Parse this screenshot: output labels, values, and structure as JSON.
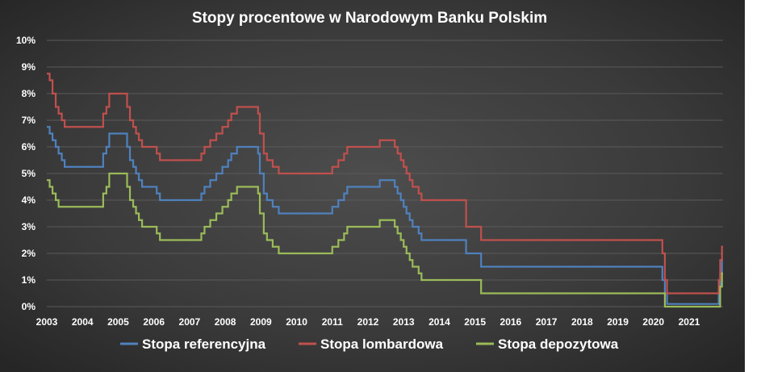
{
  "chart_data": {
    "type": "line",
    "title": "Stopy procentowe w Narodowym Banku Polskim",
    "xlabel": "",
    "ylabel": "",
    "xlim": [
      2003.0,
      2021.95
    ],
    "ylim": [
      0,
      10
    ],
    "y_ticks": [
      0,
      1,
      2,
      3,
      4,
      5,
      6,
      7,
      8,
      9,
      10
    ],
    "y_tick_labels": [
      "0%",
      "1%",
      "2%",
      "3%",
      "4%",
      "5%",
      "6%",
      "7%",
      "8%",
      "9%",
      "10%"
    ],
    "x_ticks": [
      2003,
      2004,
      2005,
      2006,
      2007,
      2008,
      2009,
      2010,
      2011,
      2012,
      2013,
      2014,
      2015,
      2016,
      2017,
      2018,
      2019,
      2020,
      2021
    ],
    "x_tick_labels": [
      "2003",
      "2004",
      "2005",
      "2006",
      "2007",
      "2008",
      "2009",
      "2010",
      "2011",
      "2012",
      "2013",
      "2014",
      "2015",
      "2016",
      "2017",
      "2018",
      "2019",
      "2020",
      "2021"
    ],
    "grid": true,
    "legend_position": "bottom",
    "background": "#333333",
    "series": [
      {
        "name": "Stopa referencyjna",
        "color": "#4f81bd",
        "step": true,
        "x": [
          2003.0,
          2003.08,
          2003.16,
          2003.25,
          2003.33,
          2003.42,
          2003.5,
          2004.58,
          2004.67,
          2004.75,
          2005.25,
          2005.33,
          2005.42,
          2005.5,
          2005.58,
          2005.67,
          2006.08,
          2006.17,
          2007.33,
          2007.42,
          2007.58,
          2007.75,
          2007.92,
          2008.08,
          2008.17,
          2008.33,
          2008.5,
          2008.92,
          2008.97,
          2009.08,
          2009.17,
          2009.33,
          2009.5,
          2011.0,
          2011.17,
          2011.33,
          2011.42,
          2012.33,
          2012.75,
          2012.83,
          2012.92,
          2013.0,
          2013.08,
          2013.17,
          2013.25,
          2013.42,
          2013.5,
          2014.75,
          2015.17,
          2020.25,
          2020.32,
          2020.38,
          2021.83,
          2021.87,
          2021.92
        ],
        "y": [
          6.75,
          6.5,
          6.25,
          6.0,
          5.75,
          5.5,
          5.25,
          5.75,
          6.0,
          6.5,
          6.0,
          5.5,
          5.25,
          5.0,
          4.75,
          4.5,
          4.25,
          4.0,
          4.25,
          4.5,
          4.75,
          5.0,
          5.25,
          5.5,
          5.75,
          6.0,
          6.0,
          5.75,
          5.0,
          4.25,
          4.0,
          3.75,
          3.5,
          3.75,
          4.0,
          4.25,
          4.5,
          4.75,
          4.5,
          4.25,
          4.0,
          3.75,
          3.5,
          3.25,
          3.0,
          2.75,
          2.5,
          2.0,
          1.5,
          1.0,
          0.5,
          0.1,
          0.5,
          1.25,
          1.75
        ]
      },
      {
        "name": "Stopa lombardowa",
        "color": "#c0504d",
        "step": true,
        "x": [
          2003.0,
          2003.08,
          2003.16,
          2003.25,
          2003.33,
          2003.42,
          2003.5,
          2004.58,
          2004.67,
          2004.75,
          2005.25,
          2005.33,
          2005.42,
          2005.5,
          2005.58,
          2005.67,
          2006.08,
          2006.17,
          2007.33,
          2007.42,
          2007.58,
          2007.75,
          2007.92,
          2008.08,
          2008.17,
          2008.33,
          2008.5,
          2008.92,
          2008.97,
          2009.08,
          2009.17,
          2009.33,
          2009.5,
          2011.0,
          2011.17,
          2011.33,
          2011.42,
          2012.33,
          2012.75,
          2012.83,
          2012.92,
          2013.0,
          2013.08,
          2013.17,
          2013.25,
          2013.42,
          2013.5,
          2014.75,
          2015.17,
          2020.25,
          2020.32,
          2020.38,
          2021.83,
          2021.87,
          2021.92
        ],
        "y": [
          8.75,
          8.5,
          8.0,
          7.5,
          7.25,
          7.0,
          6.75,
          7.25,
          7.5,
          8.0,
          7.5,
          7.0,
          6.75,
          6.5,
          6.25,
          6.0,
          5.75,
          5.5,
          5.75,
          6.0,
          6.25,
          6.5,
          6.75,
          7.0,
          7.25,
          7.5,
          7.5,
          7.25,
          6.5,
          5.75,
          5.5,
          5.25,
          5.0,
          5.25,
          5.5,
          5.75,
          6.0,
          6.25,
          6.0,
          5.75,
          5.5,
          5.25,
          5.0,
          4.75,
          4.5,
          4.25,
          4.0,
          3.0,
          2.5,
          2.0,
          1.0,
          0.5,
          1.0,
          1.75,
          2.25
        ]
      },
      {
        "name": "Stopa depozytowa",
        "color": "#9bbb59",
        "step": true,
        "x": [
          2003.0,
          2003.08,
          2003.16,
          2003.25,
          2003.33,
          2003.42,
          2003.5,
          2004.58,
          2004.67,
          2004.75,
          2005.25,
          2005.33,
          2005.42,
          2005.5,
          2005.58,
          2005.67,
          2006.08,
          2006.17,
          2007.33,
          2007.42,
          2007.58,
          2007.75,
          2007.92,
          2008.08,
          2008.17,
          2008.33,
          2008.5,
          2008.92,
          2008.97,
          2009.08,
          2009.17,
          2009.33,
          2009.5,
          2011.0,
          2011.17,
          2011.33,
          2011.42,
          2012.33,
          2012.75,
          2012.83,
          2012.92,
          2013.0,
          2013.08,
          2013.17,
          2013.25,
          2013.42,
          2013.5,
          2014.75,
          2015.17,
          2020.25,
          2020.32,
          2020.38,
          2021.83,
          2021.87,
          2021.92
        ],
        "y": [
          4.75,
          4.5,
          4.25,
          4.0,
          3.75,
          3.75,
          3.75,
          4.25,
          4.5,
          5.0,
          4.5,
          4.0,
          3.75,
          3.5,
          3.25,
          3.0,
          2.75,
          2.5,
          2.75,
          3.0,
          3.25,
          3.5,
          3.75,
          4.0,
          4.25,
          4.5,
          4.5,
          4.25,
          3.5,
          2.75,
          2.5,
          2.25,
          2.0,
          2.25,
          2.5,
          2.75,
          3.0,
          3.25,
          3.0,
          2.75,
          2.5,
          2.25,
          2.0,
          1.75,
          1.5,
          1.25,
          1.0,
          1.0,
          0.5,
          0.5,
          0.0,
          0.0,
          0.0,
          0.75,
          1.25
        ]
      }
    ]
  }
}
